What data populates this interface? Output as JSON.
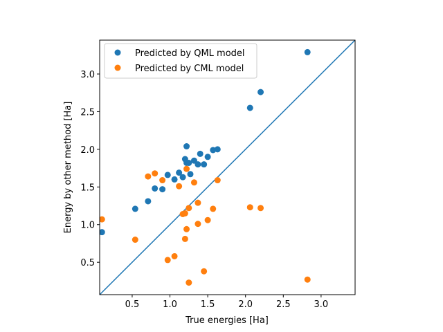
{
  "chart_data": {
    "type": "scatter",
    "xlabel": "True energies [Ha]",
    "ylabel": "Energy by other method [Ha]",
    "xlim": [
      0.07,
      3.45
    ],
    "ylim": [
      0.07,
      3.45
    ],
    "xticks": [
      0.5,
      1.0,
      1.5,
      2.0,
      2.5,
      3.0
    ],
    "yticks": [
      0.5,
      1.0,
      1.5,
      2.0,
      2.5,
      3.0
    ],
    "tick_labels": [
      "0.5",
      "1.0",
      "1.5",
      "2.0",
      "2.5",
      "3.0"
    ],
    "legend_position": "upper-left",
    "diagonal": {
      "from": [
        0.07,
        0.07
      ],
      "to": [
        3.45,
        3.45
      ],
      "color": "#1f77b4"
    },
    "series": [
      {
        "name": "Predicted by QML model",
        "color": "#1f77b4",
        "x": [
          0.1,
          0.54,
          0.71,
          0.8,
          0.9,
          0.97,
          1.06,
          1.12,
          1.17,
          1.2,
          1.22,
          1.22,
          1.25,
          1.27,
          1.32,
          1.37,
          1.4,
          1.45,
          1.5,
          1.57,
          1.63,
          2.06,
          2.2,
          2.82
        ],
        "y": [
          0.9,
          1.21,
          1.31,
          1.48,
          1.47,
          1.66,
          1.6,
          1.69,
          1.63,
          1.87,
          1.82,
          2.04,
          1.82,
          1.67,
          1.85,
          1.8,
          1.94,
          1.8,
          1.9,
          1.99,
          2.0,
          2.55,
          2.76,
          3.29
        ]
      },
      {
        "name": "Predicted by CML model",
        "color": "#ff7f0e",
        "x": [
          0.1,
          0.54,
          0.71,
          0.8,
          0.9,
          0.97,
          1.06,
          1.12,
          1.17,
          1.2,
          1.2,
          1.22,
          1.22,
          1.25,
          1.25,
          1.32,
          1.37,
          1.37,
          1.45,
          1.5,
          1.57,
          1.63,
          2.06,
          2.2,
          2.82
        ],
        "y": [
          1.07,
          0.8,
          1.64,
          1.68,
          1.59,
          0.53,
          0.58,
          1.51,
          1.14,
          1.15,
          0.81,
          0.94,
          1.74,
          1.22,
          0.23,
          1.56,
          1.29,
          1.01,
          0.38,
          1.06,
          1.21,
          1.59,
          1.23,
          1.22,
          0.27
        ]
      }
    ]
  }
}
